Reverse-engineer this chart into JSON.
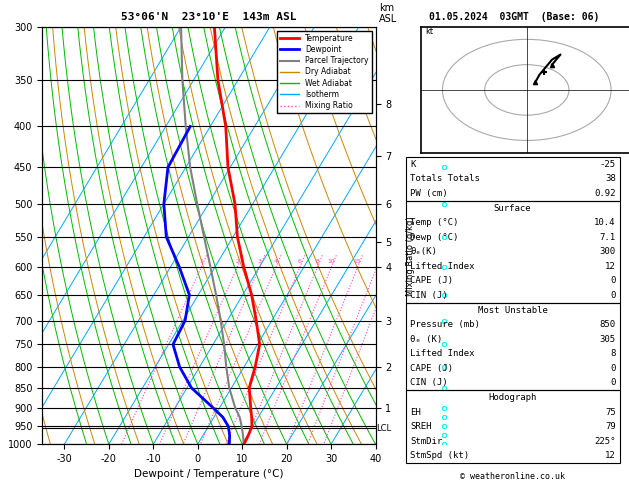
{
  "title_left": "53°06'N  23°10'E  143m ASL",
  "title_right": "01.05.2024  03GMT  (Base: 06)",
  "xlabel": "Dewpoint / Temperature (°C)",
  "temp_min": -35,
  "temp_max": 40,
  "temp_ticks": [
    -30,
    -20,
    -10,
    0,
    10,
    20,
    30,
    40
  ],
  "skew_factor": 0.75,
  "isotherm_color": "#00aaff",
  "dry_adiabat_color": "#cc8800",
  "wet_adiabat_color": "#00bb00",
  "mixing_ratio_color": "#ff44bb",
  "pressure_levels": [
    300,
    350,
    400,
    450,
    500,
    550,
    600,
    650,
    700,
    750,
    800,
    850,
    900,
    950,
    1000
  ],
  "temperature_profile_pressure": [
    1000,
    975,
    950,
    925,
    900,
    850,
    800,
    750,
    700,
    650,
    600,
    550,
    500,
    450,
    400,
    350,
    300
  ],
  "temperature_profile_temp": [
    10.4,
    10.2,
    9.8,
    8.5,
    7.0,
    4.0,
    2.5,
    0.5,
    -3.5,
    -8.0,
    -13.5,
    -19.0,
    -24.0,
    -30.5,
    -36.5,
    -44.5,
    -52.5
  ],
  "dewpoint_profile_pressure": [
    1000,
    975,
    950,
    925,
    900,
    850,
    800,
    750,
    700,
    650,
    600,
    550,
    500,
    450,
    400
  ],
  "dewpoint_profile_temp": [
    7.1,
    6.0,
    4.5,
    2.0,
    -1.5,
    -9.0,
    -14.5,
    -19.0,
    -19.5,
    -22.0,
    -28.0,
    -35.0,
    -40.0,
    -44.0,
    -44.5
  ],
  "parcel_trajectory_pressure": [
    1000,
    975,
    950,
    925,
    900,
    850,
    800,
    750,
    700,
    650,
    600,
    550,
    500,
    450,
    400,
    350,
    300
  ],
  "parcel_trajectory_temp": [
    10.4,
    9.0,
    7.5,
    5.8,
    3.5,
    -0.5,
    -4.0,
    -7.5,
    -11.5,
    -16.0,
    -21.0,
    -26.5,
    -32.5,
    -39.0,
    -45.5,
    -52.5,
    -60.0
  ],
  "lcl_pressure": 955,
  "mixing_ratios": [
    1,
    2,
    3,
    4,
    6,
    8,
    10,
    15,
    20,
    25
  ],
  "km_pressures": [
    900,
    800,
    700,
    600,
    558,
    500,
    435,
    375
  ],
  "km_values": [
    1,
    2,
    3,
    4,
    5,
    6,
    7,
    8
  ],
  "wind_pressures": [
    1000,
    975,
    950,
    925,
    900,
    850,
    800,
    750,
    700,
    650,
    600,
    550,
    500,
    450,
    400,
    350,
    300
  ],
  "wind_u": [
    -3,
    -4,
    -4,
    -4,
    -3,
    -3,
    -3,
    -4,
    -5,
    -6,
    -7,
    -8,
    -8,
    -10,
    -12,
    -14,
    -15
  ],
  "wind_v": [
    4,
    5,
    5,
    5,
    6,
    7,
    7,
    8,
    8,
    8,
    9,
    10,
    10,
    10,
    11,
    11,
    12
  ],
  "stats_k": "-25",
  "stats_tt": "38",
  "stats_pw": "0.92",
  "surf_temp": "10.4",
  "surf_dewp": "7.1",
  "surf_theta_e": "300",
  "surf_li": "12",
  "surf_cape": "0",
  "surf_cin": "0",
  "mu_pressure": "850",
  "mu_theta_e": "305",
  "mu_li": "8",
  "mu_cape": "0",
  "mu_cin": "0",
  "hodo_eh": "75",
  "hodo_sreh": "79",
  "hodo_stmdir": "225°",
  "hodo_stmspd": "12"
}
